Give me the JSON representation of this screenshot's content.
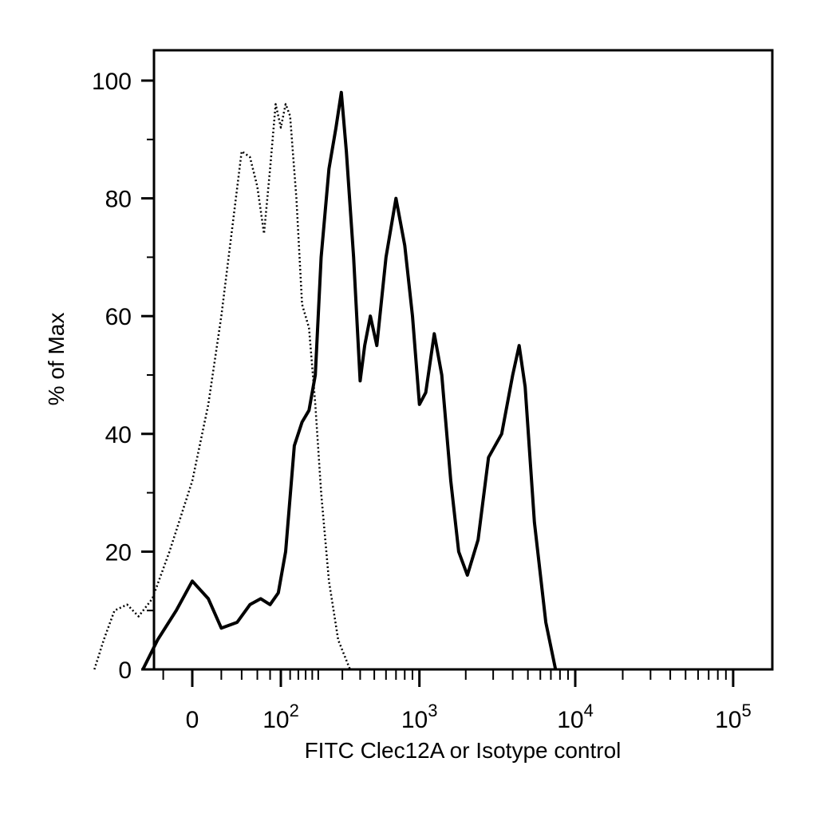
{
  "chart_data": {
    "type": "line",
    "xlabel": "FITC Clec12A or Isotype control",
    "ylabel": "% of Max",
    "ylim": [
      0,
      100
    ],
    "yticks": [
      0,
      20,
      40,
      60,
      80,
      100
    ],
    "xscale": "biexponential",
    "xticks": [
      {
        "value": 0,
        "base": "0",
        "exp": ""
      },
      {
        "value": 100,
        "base": "10",
        "exp": "2"
      },
      {
        "value": 1000,
        "base": "10",
        "exp": "3"
      },
      {
        "value": 10000,
        "base": "10",
        "exp": "4"
      },
      {
        "value": 100000,
        "base": "10",
        "exp": "5"
      }
    ],
    "grid": false,
    "series": [
      {
        "style": "dotted",
        "points": [
          [
            -120,
            0
          ],
          [
            -100,
            5
          ],
          [
            -80,
            10
          ],
          [
            -60,
            11
          ],
          [
            -45,
            9
          ],
          [
            -30,
            12
          ],
          [
            -15,
            20
          ],
          [
            0,
            32
          ],
          [
            10,
            45
          ],
          [
            20,
            60
          ],
          [
            30,
            75
          ],
          [
            40,
            88
          ],
          [
            50,
            87
          ],
          [
            60,
            82
          ],
          [
            70,
            74
          ],
          [
            80,
            85
          ],
          [
            90,
            96
          ],
          [
            100,
            92
          ],
          [
            110,
            96
          ],
          [
            120,
            94
          ],
          [
            135,
            80
          ],
          [
            150,
            62
          ],
          [
            170,
            58
          ],
          [
            190,
            45
          ],
          [
            210,
            30
          ],
          [
            240,
            15
          ],
          [
            280,
            5
          ],
          [
            340,
            0
          ]
        ]
      },
      {
        "style": "solid",
        "points": [
          [
            -40,
            0
          ],
          [
            -25,
            5
          ],
          [
            -10,
            10
          ],
          [
            0,
            15
          ],
          [
            10,
            12
          ],
          [
            20,
            7
          ],
          [
            35,
            8
          ],
          [
            50,
            11
          ],
          [
            65,
            12
          ],
          [
            80,
            11
          ],
          [
            95,
            13
          ],
          [
            110,
            20
          ],
          [
            130,
            38
          ],
          [
            150,
            42
          ],
          [
            170,
            44
          ],
          [
            190,
            50
          ],
          [
            210,
            70
          ],
          [
            240,
            85
          ],
          [
            270,
            92
          ],
          [
            295,
            98
          ],
          [
            320,
            88
          ],
          [
            360,
            70
          ],
          [
            400,
            49
          ],
          [
            430,
            55
          ],
          [
            470,
            60
          ],
          [
            520,
            55
          ],
          [
            600,
            70
          ],
          [
            700,
            80
          ],
          [
            800,
            72
          ],
          [
            900,
            60
          ],
          [
            1000,
            45
          ],
          [
            1100,
            47
          ],
          [
            1250,
            57
          ],
          [
            1400,
            50
          ],
          [
            1600,
            32
          ],
          [
            1800,
            20
          ],
          [
            2050,
            16
          ],
          [
            2400,
            22
          ],
          [
            2800,
            36
          ],
          [
            3400,
            40
          ],
          [
            4000,
            50
          ],
          [
            4400,
            55
          ],
          [
            4800,
            48
          ],
          [
            5500,
            25
          ],
          [
            6500,
            8
          ],
          [
            7500,
            0
          ]
        ]
      }
    ]
  }
}
